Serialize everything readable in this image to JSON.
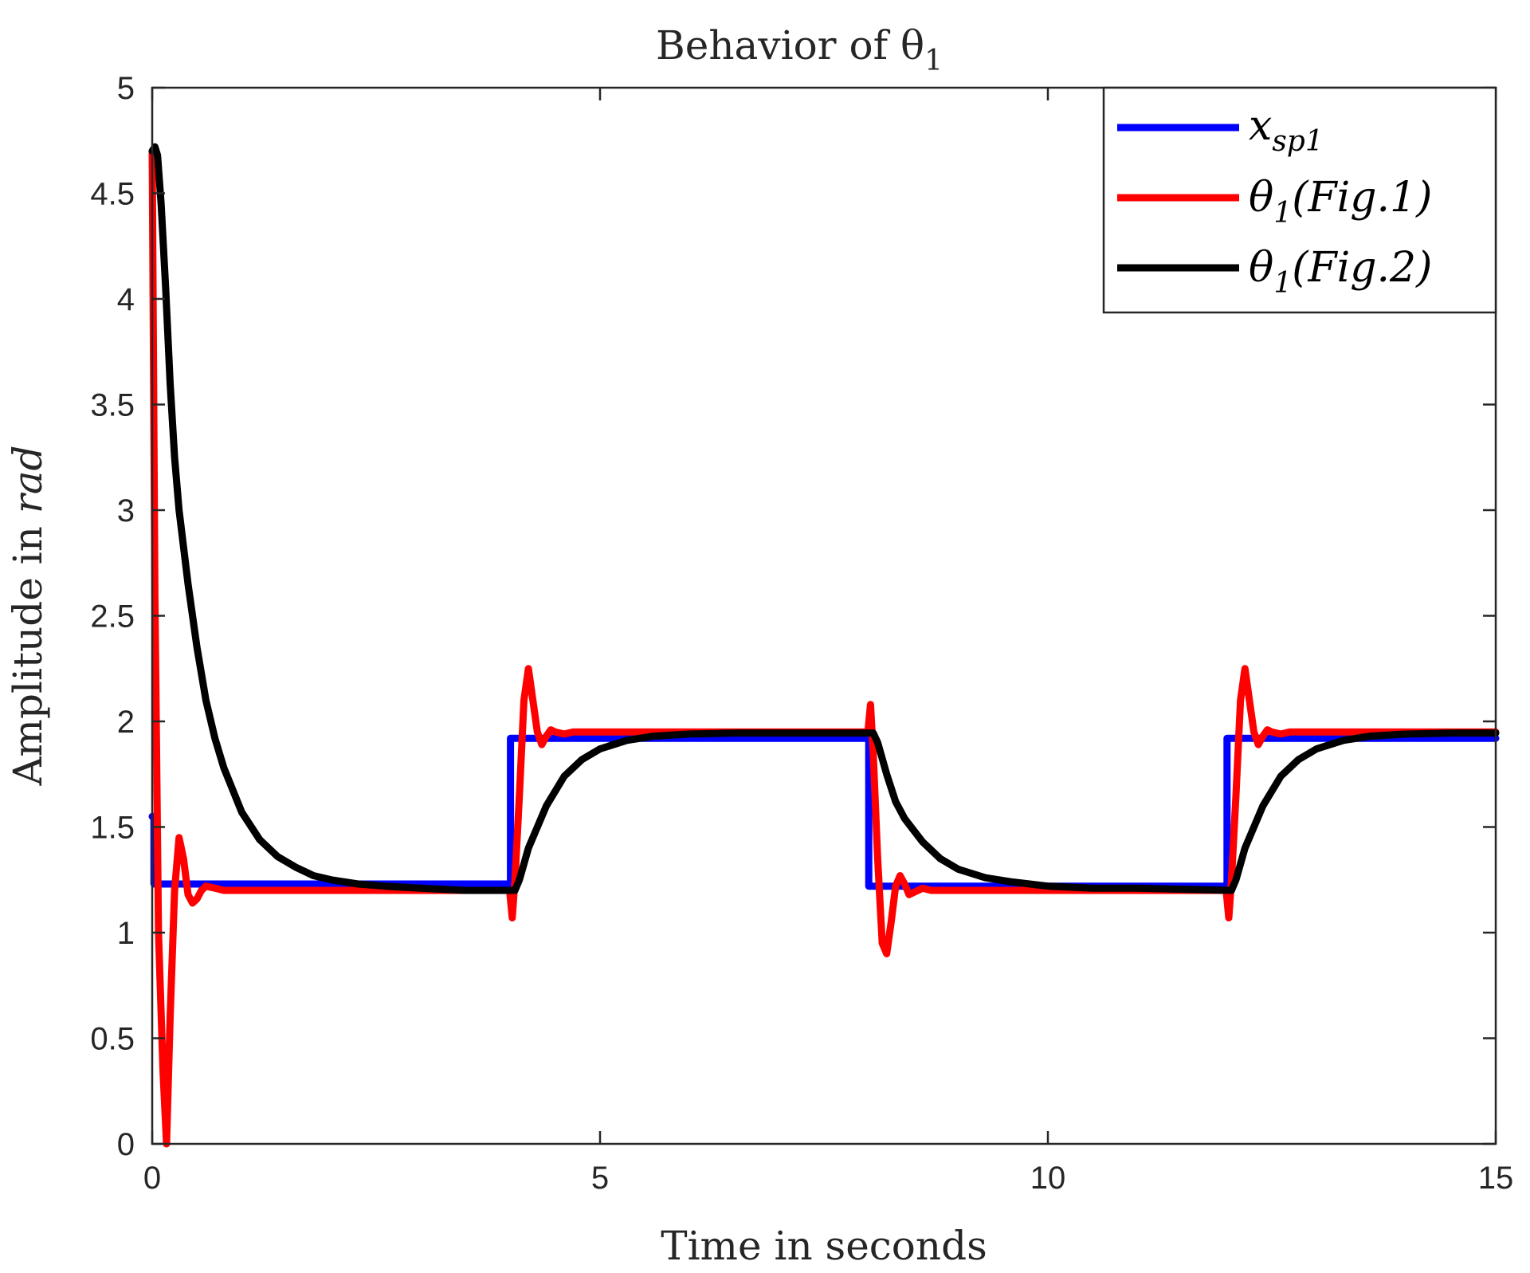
{
  "chart_data": {
    "type": "line",
    "title": "Behavior of θ",
    "title_subscript": "1",
    "xlabel": "Time in seconds",
    "ylabel_prefix": "Amplitude in ",
    "ylabel_unit": "rad",
    "xlim": [
      0,
      15
    ],
    "ylim": [
      0,
      5
    ],
    "xticks": [
      0,
      5,
      10,
      15
    ],
    "xtick_labels": [
      "0",
      "5",
      "10",
      "15"
    ],
    "yticks": [
      0,
      0.5,
      1,
      1.5,
      2,
      2.5,
      3,
      3.5,
      4,
      4.5,
      5
    ],
    "ytick_labels": [
      "0",
      "0.5",
      "1",
      "1.5",
      "2",
      "2.5",
      "3",
      "3.5",
      "4",
      "4.5",
      "5"
    ],
    "grid": false,
    "legend_position": "top-right",
    "series": [
      {
        "name": "x_sp1",
        "legend_main": "x",
        "legend_sub": "sp1",
        "legend_suffix": "",
        "color": "#0000ff",
        "x": [
          0,
          0.02,
          0.02,
          4,
          4,
          8,
          8,
          12,
          12,
          15
        ],
        "y": [
          1.55,
          1.55,
          1.23,
          1.23,
          1.92,
          1.92,
          1.22,
          1.22,
          1.92,
          1.92
        ]
      },
      {
        "name": "θ1(Fig.1)",
        "legend_main": "θ",
        "legend_sub": "1",
        "legend_suffix": "(Fig.1)",
        "color": "#ff0000",
        "x": [
          0,
          0.03,
          0.07,
          0.12,
          0.16,
          0.2,
          0.25,
          0.3,
          0.35,
          0.4,
          0.45,
          0.5,
          0.55,
          0.6,
          0.7,
          0.8,
          0.9,
          1.0,
          1.5,
          2.0,
          3.0,
          3.99,
          4.02,
          4.05,
          4.1,
          4.15,
          4.2,
          4.25,
          4.3,
          4.35,
          4.4,
          4.45,
          4.5,
          4.6,
          4.7,
          4.8,
          5,
          6,
          7,
          7.99,
          8.02,
          8.05,
          8.1,
          8.15,
          8.2,
          8.25,
          8.3,
          8.35,
          8.4,
          8.45,
          8.5,
          8.6,
          8.7,
          8.8,
          9,
          10,
          11,
          11.99,
          12.02,
          12.05,
          12.1,
          12.15,
          12.2,
          12.25,
          12.3,
          12.35,
          12.4,
          12.45,
          12.5,
          12.6,
          12.7,
          12.8,
          13,
          14,
          15
        ],
        "y": [
          4.7,
          2.6,
          1.0,
          0.35,
          0.0,
          0.6,
          1.2,
          1.45,
          1.35,
          1.18,
          1.14,
          1.16,
          1.2,
          1.22,
          1.21,
          1.2,
          1.2,
          1.2,
          1.2,
          1.2,
          1.2,
          1.2,
          1.07,
          1.25,
          1.65,
          2.1,
          2.25,
          2.1,
          1.95,
          1.89,
          1.93,
          1.96,
          1.95,
          1.94,
          1.95,
          1.95,
          1.95,
          1.95,
          1.95,
          1.95,
          2.08,
          1.85,
          1.35,
          0.95,
          0.9,
          1.05,
          1.22,
          1.27,
          1.23,
          1.18,
          1.19,
          1.21,
          1.2,
          1.2,
          1.2,
          1.2,
          1.2,
          1.2,
          1.07,
          1.25,
          1.65,
          2.1,
          2.25,
          2.1,
          1.95,
          1.89,
          1.93,
          1.96,
          1.95,
          1.94,
          1.95,
          1.95,
          1.95,
          1.95,
          1.95
        ]
      },
      {
        "name": "θ1(Fig.2)",
        "legend_main": "θ",
        "legend_sub": "1",
        "legend_suffix": "(Fig.2)",
        "color": "#000000",
        "x": [
          0,
          0.03,
          0.06,
          0.1,
          0.15,
          0.2,
          0.25,
          0.3,
          0.4,
          0.5,
          0.6,
          0.7,
          0.8,
          1.0,
          1.2,
          1.4,
          1.6,
          1.8,
          2.0,
          2.3,
          2.6,
          3.0,
          3.5,
          4.05,
          4.1,
          4.2,
          4.4,
          4.6,
          4.8,
          5.0,
          5.3,
          5.6,
          6.0,
          6.5,
          7,
          8.05,
          8.1,
          8.2,
          8.3,
          8.4,
          8.6,
          8.8,
          9.0,
          9.3,
          9.6,
          10,
          10.5,
          11,
          12.05,
          12.1,
          12.2,
          12.4,
          12.6,
          12.8,
          13.0,
          13.3,
          13.6,
          14.0,
          14.5,
          15
        ],
        "y": [
          4.7,
          4.72,
          4.68,
          4.45,
          4.05,
          3.6,
          3.25,
          3.0,
          2.65,
          2.35,
          2.1,
          1.92,
          1.78,
          1.57,
          1.44,
          1.36,
          1.31,
          1.27,
          1.25,
          1.23,
          1.22,
          1.21,
          1.2,
          1.2,
          1.25,
          1.4,
          1.6,
          1.74,
          1.82,
          1.87,
          1.91,
          1.93,
          1.94,
          1.945,
          1.945,
          1.945,
          1.9,
          1.75,
          1.62,
          1.54,
          1.43,
          1.35,
          1.3,
          1.26,
          1.24,
          1.22,
          1.21,
          1.21,
          1.2,
          1.25,
          1.4,
          1.6,
          1.74,
          1.82,
          1.87,
          1.91,
          1.93,
          1.94,
          1.945,
          1.945
        ]
      }
    ]
  }
}
